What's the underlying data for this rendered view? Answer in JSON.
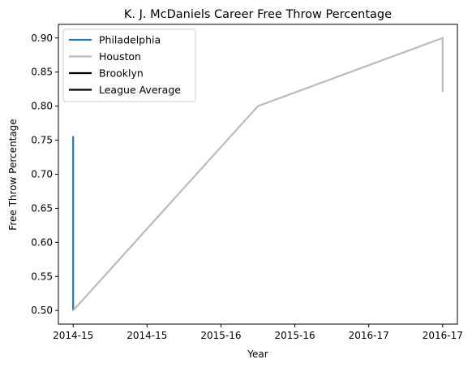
{
  "chart_data": {
    "type": "line",
    "title": "K. J. McDaniels Career Free Throw Percentage",
    "xlabel": "Year",
    "ylabel": "Free Throw Percentage",
    "xlim": [
      -0.2,
      5.2
    ],
    "ylim": [
      0.48,
      0.92
    ],
    "x_tick_labels": [
      "2014-15",
      "2014-15",
      "2015-16",
      "2015-16",
      "2016-17",
      "2016-17"
    ],
    "y_ticks": [
      "0.50",
      "0.55",
      "0.60",
      "0.65",
      "0.70",
      "0.75",
      "0.80",
      "0.85",
      "0.90"
    ],
    "grid": false,
    "legend_position": "top-left",
    "series": [
      {
        "name": "Philadelphia",
        "color": "#1f77b4",
        "x": [
          0,
          0
        ],
        "y": [
          0.756,
          0.5
        ]
      },
      {
        "name": "Houston",
        "color": "#bbbbbb",
        "x": [
          0,
          2.5,
          5,
          5
        ],
        "y": [
          0.5,
          0.8,
          0.9,
          0.821
        ]
      },
      {
        "name": "Brooklyn",
        "color": "#000000",
        "x": [],
        "y": []
      },
      {
        "name": "League Average",
        "color": "#000000",
        "x": [],
        "y": []
      }
    ]
  }
}
